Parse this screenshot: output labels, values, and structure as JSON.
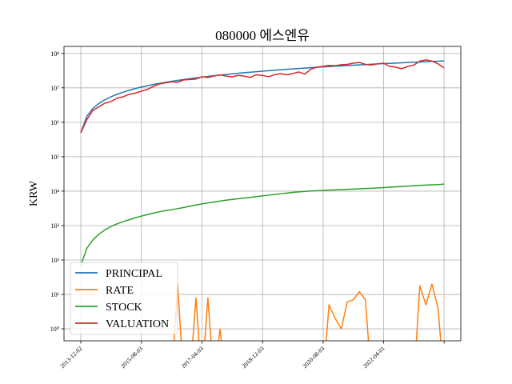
{
  "chart_data": {
    "type": "line",
    "title": "080000 에스엔유",
    "ylabel": "KRW",
    "log_y": true,
    "grid": true,
    "legend_loc": "lower left",
    "x": [
      "2013-12-02",
      "2014-02-01",
      "2014-04-01",
      "2014-06-01",
      "2014-08-01",
      "2014-10-01",
      "2014-12-01",
      "2015-02-01",
      "2015-04-01",
      "2015-06-01",
      "2015-08-01",
      "2015-10-01",
      "2015-12-01",
      "2016-02-01",
      "2016-04-01",
      "2016-06-01",
      "2016-08-01",
      "2016-10-01",
      "2016-12-01",
      "2017-02-01",
      "2017-04-01",
      "2017-06-01",
      "2017-08-01",
      "2017-10-01",
      "2017-12-01",
      "2018-02-01",
      "2018-04-01",
      "2018-06-01",
      "2018-08-01",
      "2018-10-01",
      "2018-12-01",
      "2019-02-01",
      "2019-04-01",
      "2019-06-01",
      "2019-08-01",
      "2019-10-01",
      "2019-12-01",
      "2020-02-01",
      "2020-04-01",
      "2020-06-01",
      "2020-08-01",
      "2020-10-01",
      "2020-12-01",
      "2021-02-01",
      "2021-04-01",
      "2021-06-01",
      "2021-08-01",
      "2021-10-01",
      "2021-12-01",
      "2022-02-01",
      "2022-04-01",
      "2022-06-01",
      "2022-08-01",
      "2022-10-01",
      "2022-12-01",
      "2023-02-01",
      "2023-04-01",
      "2023-06-01",
      "2023-08-01",
      "2023-10-01",
      "2023-12-01"
    ],
    "xlim": [
      "2013-06-16",
      "2024-05-17"
    ],
    "xticks": [
      "2013-12-02",
      "2015-08-03",
      "2017-04-03",
      "2018-12-03",
      "2020-08-03",
      "2022-04-01",
      {
        "value": "2023-12-01",
        "label": null
      }
    ],
    "ylim": [
      0.45,
      160000000
    ],
    "yticks": [
      {
        "value": 1,
        "label": "10⁰"
      },
      {
        "value": 10,
        "label": "10¹"
      },
      {
        "value": 100,
        "label": "10²"
      },
      {
        "value": 1000,
        "label": "10³"
      },
      {
        "value": 10000,
        "label": "10⁴"
      },
      {
        "value": 100000,
        "label": "10⁵"
      },
      {
        "value": 1000000,
        "label": "10⁶"
      },
      {
        "value": 10000000,
        "label": "10⁷"
      },
      {
        "value": 100000000,
        "label": "10⁸"
      }
    ],
    "series": [
      {
        "name": "PRINCIPAL",
        "color": "#1f77b4",
        "values": [
          500000,
          1500000,
          2500000,
          3500000,
          4500000,
          5500000,
          6500000,
          7500000,
          8500000,
          9500000,
          10500000,
          11500000,
          12500000,
          13500000,
          14500000,
          15500000,
          16500000,
          17500000,
          18500000,
          19500000,
          20500000,
          21500000,
          22500000,
          23500000,
          24500000,
          25500000,
          26500000,
          27500000,
          28500000,
          29500000,
          30500000,
          31500000,
          32500000,
          33500000,
          34500000,
          35500000,
          36500000,
          37500000,
          38500000,
          39500000,
          40500000,
          41500000,
          42500000,
          43500000,
          44500000,
          45500000,
          46500000,
          47500000,
          48500000,
          49500000,
          50500000,
          51500000,
          52500000,
          53500000,
          54500000,
          55500000,
          56500000,
          57500000,
          58500000,
          59500000,
          60500000
        ]
      },
      {
        "name": "RATE",
        "color": "#ff7f0e",
        "values": [
          0,
          0,
          0,
          0,
          0,
          0,
          0,
          0,
          0,
          0,
          0,
          0,
          0,
          0,
          0,
          0,
          20,
          0,
          0,
          8,
          0,
          8,
          0,
          1,
          0,
          0,
          0,
          0,
          0,
          0,
          0,
          0,
          0,
          0,
          0,
          0,
          0,
          0,
          0,
          0,
          0,
          5,
          2,
          1,
          6,
          7,
          12,
          7,
          0,
          0,
          0,
          0,
          0,
          0,
          0,
          0,
          18,
          5,
          20,
          4,
          0
        ]
      },
      {
        "name": "STOCK",
        "color": "#2ca02c",
        "values": [
          70,
          220,
          380,
          560,
          750,
          940,
          1120,
          1300,
          1480,
          1680,
          1880,
          2080,
          2300,
          2520,
          2720,
          2900,
          3100,
          3350,
          3650,
          3950,
          4250,
          4550,
          4850,
          5150,
          5450,
          5750,
          6050,
          6300,
          6600,
          6950,
          7300,
          7650,
          8000,
          8400,
          8800,
          9200,
          9500,
          9800,
          10100,
          10300,
          10500,
          10700,
          10900,
          11100,
          11300,
          11500,
          11700,
          11900,
          12100,
          12400,
          12700,
          13000,
          13300,
          13600,
          14000,
          14400,
          14700,
          15000,
          15300,
          15500,
          16000
        ]
      },
      {
        "name": "VALUATION",
        "color": "#d62728",
        "values": [
          500000,
          1200000,
          2200000,
          2800000,
          3600000,
          4000000,
          5000000,
          5500000,
          6500000,
          7000000,
          8000000,
          9000000,
          11000000,
          13000000,
          14000000,
          15000000,
          14500000,
          17000000,
          17500000,
          18000000,
          21000000,
          20000000,
          22000000,
          24000000,
          22000000,
          21000000,
          23000000,
          22000000,
          20000000,
          24000000,
          23000000,
          21000000,
          24000000,
          26000000,
          24000000,
          26000000,
          29000000,
          25000000,
          35000000,
          40000000,
          42000000,
          45000000,
          44000000,
          47000000,
          48000000,
          52000000,
          55000000,
          48000000,
          46000000,
          50000000,
          52000000,
          42000000,
          40000000,
          36000000,
          42000000,
          46000000,
          60000000,
          65000000,
          60000000,
          50000000,
          38000000
        ]
      }
    ]
  }
}
